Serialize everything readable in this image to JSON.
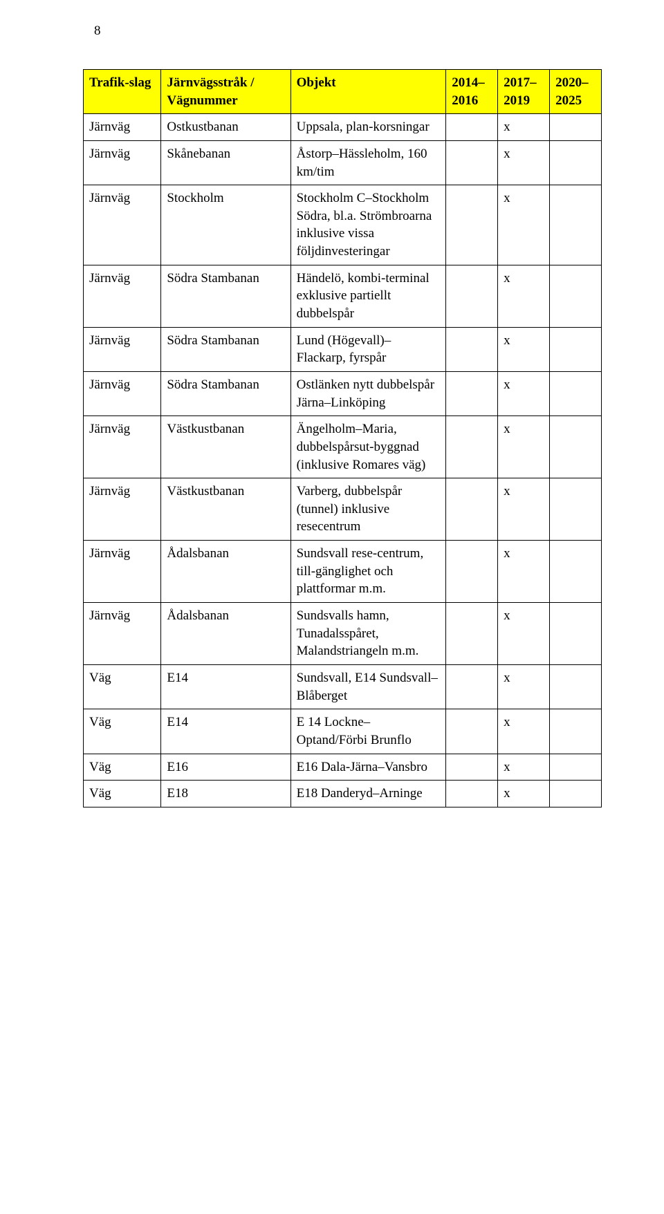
{
  "page_number": "8",
  "header_bg": "#ffff00",
  "columns": [
    "Trafik-slag",
    "Järnvägsstråk / Vägnummer",
    "Objekt",
    "2014–2016",
    "2017–2019",
    "2020–2025"
  ],
  "rows": [
    {
      "c0": "Järnväg",
      "c1": "Ostkustbanan",
      "c2": "Uppsala, plan-korsningar",
      "c3": "",
      "c4": "x",
      "c5": ""
    },
    {
      "c0": "Järnväg",
      "c1": "Skånebanan",
      "c2": "Åstorp–Hässleholm, 160 km/tim",
      "c3": "",
      "c4": "x",
      "c5": ""
    },
    {
      "c0": "Järnväg",
      "c1": "Stockholm",
      "c2": "Stockholm C–Stockholm Södra, bl.a. Strömbroarna inklusive vissa följdinvesteringar",
      "c3": "",
      "c4": "x",
      "c5": ""
    },
    {
      "c0": "Järnväg",
      "c1": "Södra Stambanan",
      "c2": "Händelö, kombi-terminal exklusive partiellt dubbelspår",
      "c3": "",
      "c4": "x",
      "c5": ""
    },
    {
      "c0": "Järnväg",
      "c1": "Södra Stambanan",
      "c2": "Lund (Högevall)–Flackarp, fyrspår",
      "c3": "",
      "c4": "x",
      "c5": ""
    },
    {
      "c0": "Järnväg",
      "c1": "Södra Stambanan",
      "c2": "Ostlänken nytt dubbelspår Järna–Linköping",
      "c3": "",
      "c4": "x",
      "c5": ""
    },
    {
      "c0": "Järnväg",
      "c1": "Västkustbanan",
      "c2": "Ängelholm–Maria, dubbelspårsut-byggnad (inklusive Romares väg)",
      "c3": "",
      "c4": "x",
      "c5": ""
    },
    {
      "c0": "Järnväg",
      "c1": "Västkustbanan",
      "c2": "Varberg, dubbelspår (tunnel) inklusive resecentrum",
      "c3": "",
      "c4": "x",
      "c5": ""
    },
    {
      "c0": "Järnväg",
      "c1": "Ådalsbanan",
      "c2": "Sundsvall rese-centrum, till-gänglighet och plattformar m.m.",
      "c3": "",
      "c4": "x",
      "c5": ""
    },
    {
      "c0": "Järnväg",
      "c1": "Ådalsbanan",
      "c2": "Sundsvalls hamn, Tunadalsspåret, Malandstriangeln m.m.",
      "c3": "",
      "c4": "x",
      "c5": ""
    },
    {
      "c0": "Väg",
      "c1": "E14",
      "c2": "Sundsvall, E14 Sundsvall–Blåberget",
      "c3": "",
      "c4": "x",
      "c5": ""
    },
    {
      "c0": "Väg",
      "c1": "E14",
      "c2": "E 14 Lockne–Optand/Förbi Brunflo",
      "c3": "",
      "c4": "x",
      "c5": ""
    },
    {
      "c0": "Väg",
      "c1": "E16",
      "c2": "E16 Dala-Järna–Vansbro",
      "c3": "",
      "c4": "x",
      "c5": ""
    },
    {
      "c0": "Väg",
      "c1": "E18",
      "c2": "E18 Danderyd–Arninge",
      "c3": "",
      "c4": "x",
      "c5": ""
    }
  ]
}
